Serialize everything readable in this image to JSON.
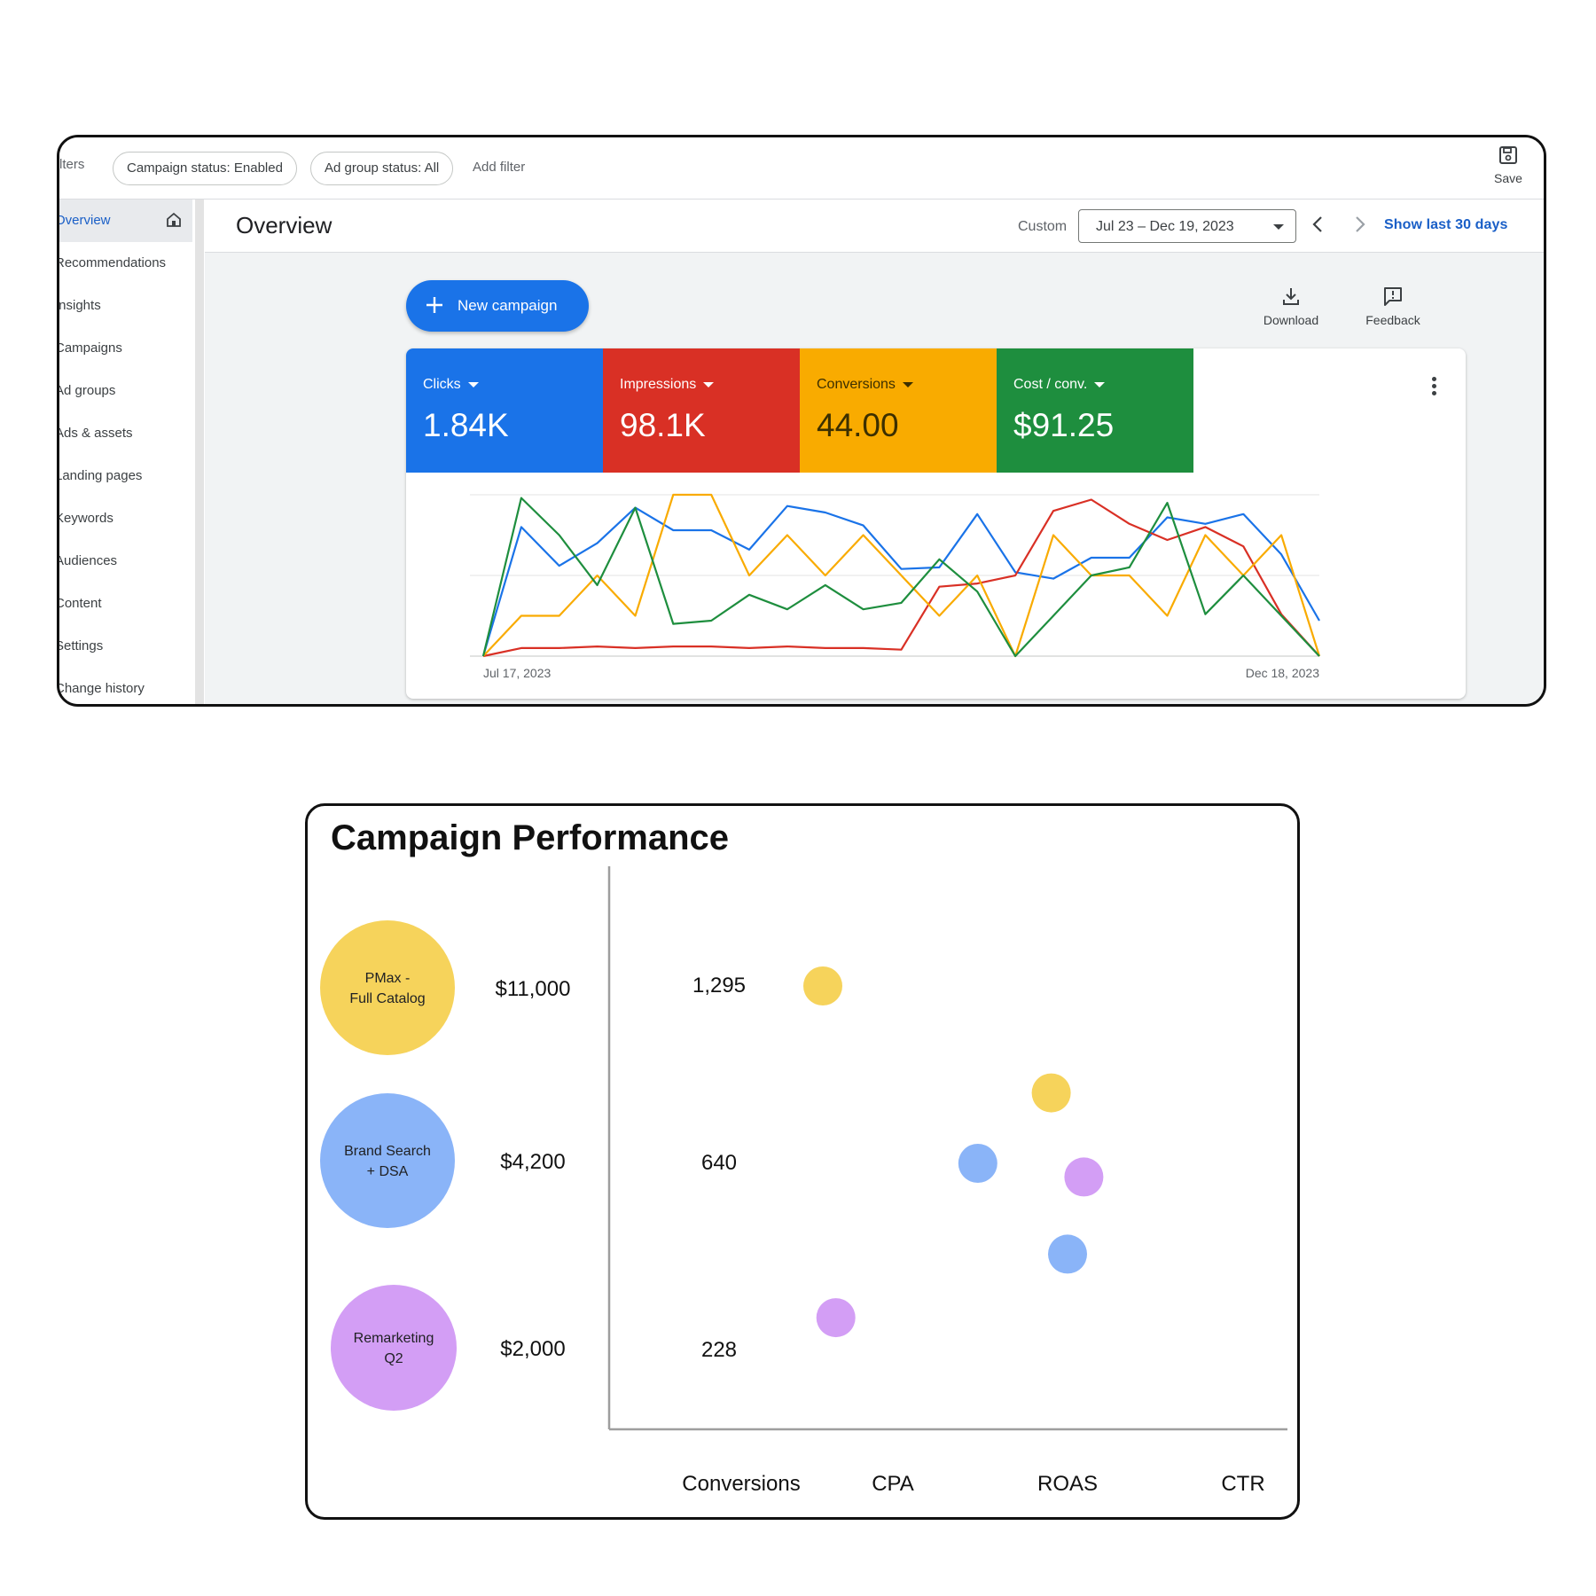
{
  "filters": {
    "cutoff_label": "lters",
    "chips": [
      "Campaign status: Enabled",
      "Ad group status: All"
    ],
    "add_filter": "Add filter",
    "save_label": "Save"
  },
  "sidebar": {
    "items": [
      {
        "label": "Overview",
        "active": true
      },
      {
        "label": "Recommendations"
      },
      {
        "label": "Insights"
      },
      {
        "label": "Campaigns"
      },
      {
        "label": "Ad groups"
      },
      {
        "label": "Ads & assets"
      },
      {
        "label": "Landing pages"
      },
      {
        "label": "Keywords"
      },
      {
        "label": "Audiences"
      },
      {
        "label": "Content"
      },
      {
        "label": "Settings"
      },
      {
        "label": "Change history"
      }
    ]
  },
  "header": {
    "title": "Overview",
    "custom_label": "Custom",
    "date_range": "Jul 23 – Dec 19, 2023",
    "show_last": "Show last 30 days"
  },
  "actions": {
    "new_campaign": "New campaign",
    "download": "Download",
    "feedback": "Feedback"
  },
  "metrics": [
    {
      "label": "Clicks",
      "value": "1.84K",
      "color": "#1a73e8"
    },
    {
      "label": "Impressions",
      "value": "98.1K",
      "color": "#d93025"
    },
    {
      "label": "Conversions",
      "value": "44.00",
      "color": "#f9ab00"
    },
    {
      "label": "Cost / conv.",
      "value": "$91.25",
      "color": "#1e8e3e"
    }
  ],
  "chart_data": [
    {
      "type": "line",
      "x_start_label": "Jul 17, 2023",
      "x_end_label": "Dec 18, 2023",
      "ylim": [
        0,
        100
      ],
      "grid": true,
      "series": [
        {
          "color": "#1a73e8",
          "values": [
            0,
            80,
            56,
            70,
            92,
            78,
            78,
            66,
            93,
            89,
            81,
            54,
            55,
            88,
            52,
            48,
            61,
            61,
            86,
            82,
            88,
            63,
            22
          ]
        },
        {
          "color": "#d93025",
          "values": [
            0,
            5,
            5,
            6,
            5,
            6,
            6,
            5,
            6,
            5,
            5,
            4,
            43,
            45,
            50,
            90,
            97,
            82,
            72,
            80,
            68,
            26,
            0
          ]
        },
        {
          "color": "#f9ab00",
          "values": [
            0,
            25,
            25,
            50,
            25,
            100,
            100,
            50,
            75,
            50,
            75,
            50,
            25,
            50,
            0,
            75,
            50,
            50,
            25,
            75,
            50,
            75,
            0
          ]
        },
        {
          "color": "#1e8e3e",
          "values": [
            0,
            98,
            75,
            44,
            92,
            20,
            22,
            38,
            29,
            44,
            29,
            33,
            60,
            40,
            0,
            25,
            50,
            55,
            95,
            26,
            50,
            25,
            0
          ]
        }
      ]
    },
    {
      "type": "scatter",
      "title": "Campaign Performance",
      "x_categories": [
        "Conversions",
        "CPA",
        "ROAS",
        "CTR"
      ],
      "y_tick_labels": [
        "1,295",
        "640",
        "228"
      ],
      "campaigns": [
        {
          "name": "PMax - Full Catalog",
          "spend": "$11,000",
          "color": "#f6d35b"
        },
        {
          "name": "Brand Search + DSA",
          "spend": "$4,200",
          "color": "#8ab4f8"
        },
        {
          "name": "Remarketing Q2",
          "spend": "$2,000",
          "color": "#d39ef5"
        }
      ],
      "points": [
        {
          "campaign": "PMax - Full Catalog",
          "x": 0.5,
          "y": 1295
        },
        {
          "campaign": "PMax - Full Catalog",
          "x": 1.9,
          "y": 900
        },
        {
          "campaign": "Brand Search + DSA",
          "x": 1.45,
          "y": 640
        },
        {
          "campaign": "Brand Search + DSA",
          "x": 2.0,
          "y": 440
        },
        {
          "campaign": "Remarketing Q2",
          "x": 2.1,
          "y": 610
        },
        {
          "campaign": "Remarketing Q2",
          "x": 0.58,
          "y": 300
        }
      ]
    }
  ]
}
